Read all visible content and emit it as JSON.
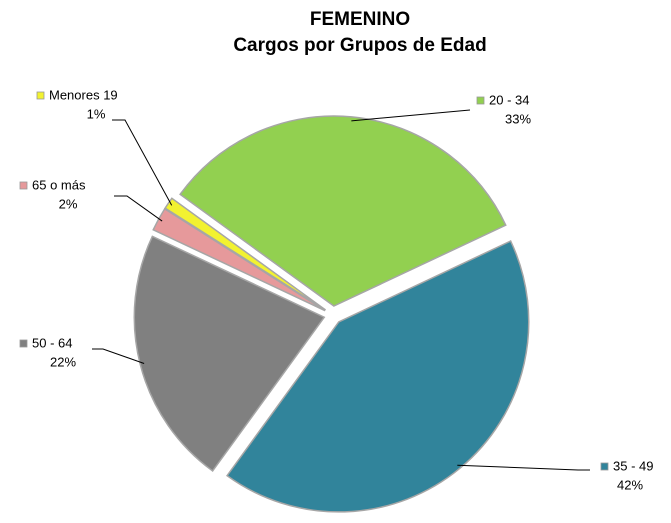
{
  "chart_data": {
    "type": "pie",
    "title": [
      "FEMENINO",
      "Cargos por Grupos de Edad"
    ],
    "categories": [
      "Menores 19",
      "20 - 34",
      "35 - 49",
      "50 - 64",
      "65 o más"
    ],
    "values": [
      1,
      33,
      42,
      22,
      2
    ],
    "value_labels": [
      "1%",
      "33%",
      "42%",
      "22%",
      "2%"
    ],
    "colors": [
      "#f2f230",
      "#92d050",
      "#31849b",
      "#808080",
      "#e6999b"
    ]
  }
}
